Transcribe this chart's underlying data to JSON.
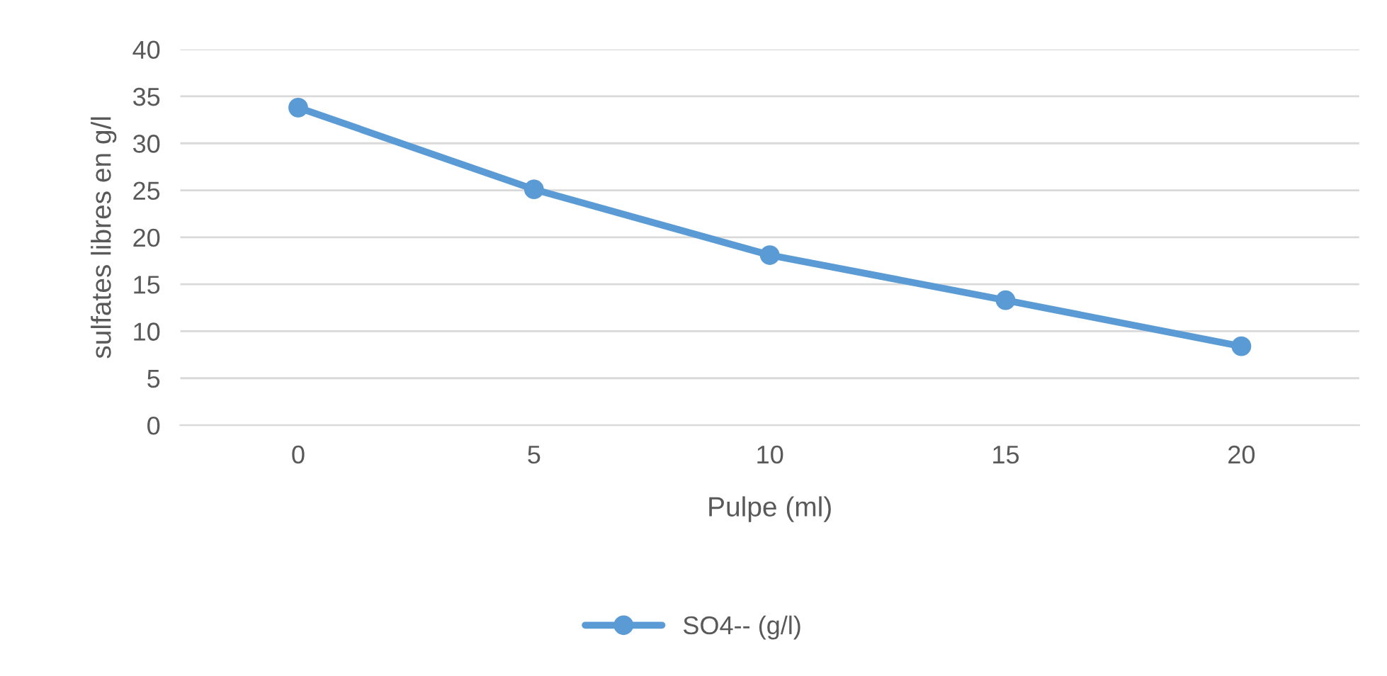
{
  "chart_data": {
    "type": "line",
    "xlabel": "Pulpe (ml)",
    "ylabel": "sulfates libres en g/l",
    "categories": [
      "0",
      "5",
      "10",
      "15",
      "20"
    ],
    "series": [
      {
        "name": "SO4-- (g/l)",
        "color": "#5b9bd5",
        "values": [
          33.8,
          25.1,
          18.1,
          13.3,
          8.4
        ]
      }
    ],
    "ylim": [
      0,
      40
    ],
    "yticks": [
      0,
      5,
      10,
      15,
      20,
      25,
      30,
      35,
      40
    ],
    "grid": "y",
    "legend": "bottom",
    "marker": "circle",
    "line_style": "solid"
  }
}
